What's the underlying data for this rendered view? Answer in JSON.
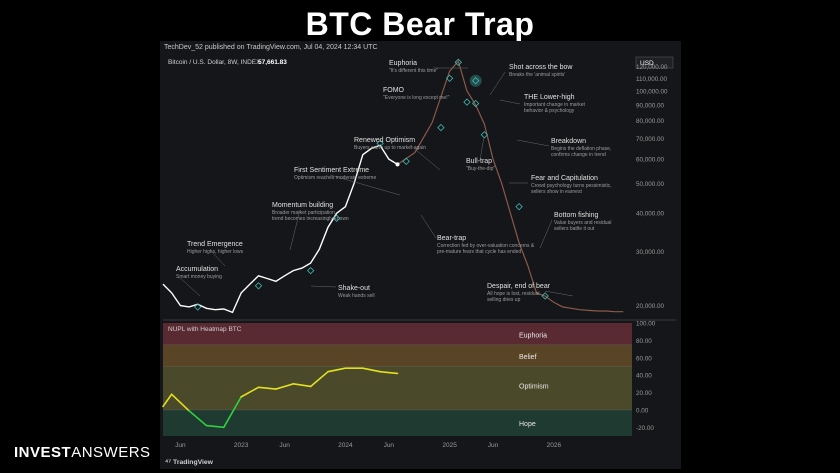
{
  "page_title": "BTC Bear Trap",
  "header_text": "TechDev_52 published on TradingView.com, Jul 04, 2024 12:34 UTC",
  "logo": {
    "bold": "INVEST",
    "light": "ANSWERS"
  },
  "footer_brand": "TradingView",
  "colors": {
    "price_line": "#ffffff",
    "projection": "#8a5a4a",
    "marker": "#3fb8b0",
    "euphoria_zone": "#5a2a33",
    "belief_zone": "#5a4426",
    "optimism_zone": "#4a4a2a",
    "hope_zone": "#1f3a30"
  },
  "chart_data": [
    {
      "type": "line",
      "title": "Bitcoin / U.S. Dollar, 8W, INDEX",
      "last_price": "57,661.83",
      "currency": "USD",
      "y_scale": "log",
      "ylim": [
        18500,
        130000
      ],
      "x_tick_labels": [
        "Jun",
        "2023",
        "Jun",
        "2024",
        "Jun",
        "2025",
        "Jun",
        "2026"
      ],
      "y_tick_labels": [
        "120,000.00",
        "110,000.00",
        "100,000.00",
        "90,000.00",
        "80,000.00",
        "70,000.00",
        "60,000.00",
        "50,000.00",
        "40,000.00",
        "30,000.00",
        "20,000.00"
      ],
      "series": [
        {
          "values_x": [
            "2022-04",
            "2022-05",
            "2022-06",
            "2022-07",
            "2022-08",
            "2022-09",
            "2022-10",
            "2022-11",
            "2022-12",
            "2023-01",
            "2023-02",
            "2023-03",
            "2023-04",
            "2023-05",
            "2023-06",
            "2023-07",
            "2023-08",
            "2023-09",
            "2023-10",
            "2023-11",
            "2023-12",
            "2024-01",
            "2024-02",
            "2024-03",
            "2024-04",
            "2024-05",
            "2024-06",
            "2024-07"
          ],
          "values": [
            23500,
            22000,
            20000,
            19800,
            20200,
            19600,
            19400,
            19500,
            19000,
            22000,
            23500,
            25000,
            24500,
            24000,
            25000,
            26000,
            26500,
            27500,
            30500,
            36000,
            40000,
            42000,
            50000,
            62000,
            65000,
            66500,
            60000,
            57660
          ]
        },
        {
          "values_x": [
            "2024-07",
            "2024-09",
            "2024-11",
            "2025-01",
            "2025-02",
            "2025-03",
            "2025-04",
            "2025-05",
            "2025-06",
            "2025-07",
            "2025-08",
            "2025-09",
            "2025-10",
            "2025-11",
            "2025-12",
            "2026-01",
            "2026-02",
            "2026-03",
            "2026-04",
            "2026-05",
            "2026-06",
            "2026-07",
            "2026-08",
            "2026-09"
          ],
          "values": [
            57660,
            63000,
            79000,
            116000,
            125000,
            100000,
            90000,
            78000,
            60000,
            50000,
            40000,
            32000,
            27000,
            22000,
            21500,
            20500,
            19800,
            19600,
            19400,
            19300,
            19200,
            19200,
            19100,
            19100
          ]
        }
      ],
      "annotations": [
        {
          "title": "Accumulation",
          "sub": [
            "Smart money buying"
          ]
        },
        {
          "title": "Trend Emergence",
          "sub": [
            "Higher highs, higher lows"
          ]
        },
        {
          "title": "Shake-out",
          "sub": [
            "Weak hands sell"
          ]
        },
        {
          "title": "Momentum building",
          "sub": [
            "Broader market participation,",
            "trend becomes increasingly known"
          ]
        },
        {
          "title": "First Sentiment Extreme",
          "sub": [
            "Optimism reaches moderate extreme"
          ]
        },
        {
          "title": "Renewed Optimism",
          "sub": [
            "Buyers warm up to market again"
          ]
        },
        {
          "title": "Bear-trap",
          "sub": [
            "Correction fed by over-valuation concerns &",
            "pre-mature fears that cycle has ended"
          ]
        },
        {
          "title": "FOMO",
          "sub": [
            "\"Everyone is long except me!\""
          ]
        },
        {
          "title": "Euphoria",
          "sub": [
            "\"It's different this time\""
          ]
        },
        {
          "title": "Shot across the bow",
          "sub": [
            "Breaks the 'animal spirits'"
          ]
        },
        {
          "title": "THE Lower-high",
          "sub": [
            "Important change in market",
            "behavior & psychology"
          ]
        },
        {
          "title": "Bull-trap",
          "sub": [
            "\"Buy-the-dip\""
          ]
        },
        {
          "title": "Breakdown",
          "sub": [
            "Begins the deflation phase,",
            "confirms change in trend"
          ]
        },
        {
          "title": "Fear and Capitulation",
          "sub": [
            "Crowd psychology turns pessimistic,",
            "sellers show in earnest"
          ]
        },
        {
          "title": "Bottom fishing",
          "sub": [
            "Value buyers and residual",
            "sellers battle it out"
          ]
        },
        {
          "title": "Despair, end of bear",
          "sub": [
            "All hope is lost, residual",
            "selling dries up"
          ]
        }
      ]
    },
    {
      "type": "line",
      "title": "NUPL with Heatmap BTC",
      "ylim": [
        -30,
        100
      ],
      "y_tick_labels": [
        "100.00",
        "80.00",
        "60.00",
        "40.00",
        "20.00",
        "0.00",
        "-20.00"
      ],
      "zones": [
        "Euphoria",
        "Belief",
        "Optimism",
        "Hope"
      ],
      "x": [
        "2022-04",
        "2022-05",
        "2022-07",
        "2022-09",
        "2022-11",
        "2023-01",
        "2023-03",
        "2023-05",
        "2023-07",
        "2023-09",
        "2023-11",
        "2024-01",
        "2024-03",
        "2024-05",
        "2024-07"
      ],
      "values": [
        4,
        18,
        -1,
        -18,
        -20,
        15,
        26,
        24,
        30,
        27,
        44,
        48,
        48,
        44,
        42
      ]
    }
  ]
}
